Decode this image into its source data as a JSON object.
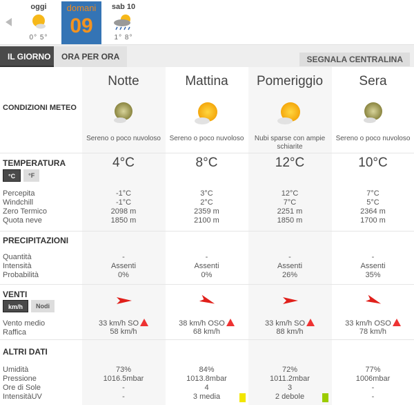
{
  "days": [
    {
      "name": "oggi",
      "temps": "0° 5°",
      "icon": "sun-cloud-icon"
    },
    {
      "name": "domani",
      "number": "09",
      "selected": true
    },
    {
      "name": "sab 10",
      "temps": "1° 8°",
      "icon": "rain-cloud-icon"
    }
  ],
  "tabs": {
    "day": "IL GIORNO",
    "hourly": "ORA PER ORA",
    "report": "SEGNALA CENTRALINA"
  },
  "sections": {
    "conditions": "CONDIZIONI METEO",
    "temperature": "TEMPERATURA",
    "precip": "PRECIPITAZIONI",
    "wind": "VENTI",
    "other": "ALTRI DATI"
  },
  "units": {
    "c": "°C",
    "f": "°F",
    "kmh": "km/h",
    "knots": "Nodi"
  },
  "labels": {
    "temperature": [
      "Percepita",
      "Windchill",
      "Zero Termico",
      "Quota neve"
    ],
    "precip": [
      "Quantità",
      "Intensità",
      "Probabilità"
    ],
    "wind": [
      "Vento medio",
      "Raffica"
    ],
    "other": [
      "Umidità",
      "Pressione",
      "Ore di Sole",
      "IntensitàUV"
    ]
  },
  "colors": {
    "accent": "#3474b5",
    "selected_day_text": "#f39320",
    "wind_arrow": "#e0201b",
    "uv_media": "#f2e600",
    "uv_debole": "#9ccc00"
  },
  "periods": [
    {
      "name": "Notte",
      "icon": "moon-cloud-icon",
      "desc": "Sereno o poco nuvoloso",
      "temp": "4°C",
      "perceived": "-1°C",
      "windchill": "-1°C",
      "freezing": "2098 m",
      "snow": "1850 m",
      "qty": "-",
      "intensity": "Assenti",
      "prob": "0%",
      "wind_dir_deg": 225,
      "wind": "33 km/h  SO",
      "gust": "58 km/h",
      "humidity": "73%",
      "pressure": "1016.5mbar",
      "sun": "-",
      "uv": "-",
      "uv_color": ""
    },
    {
      "name": "Mattina",
      "icon": "sun-cloud-icon",
      "desc": "Sereno o poco nuvoloso",
      "temp": "8°C",
      "perceived": "3°C",
      "windchill": "2°C",
      "freezing": "2359 m",
      "snow": "2100 m",
      "qty": "-",
      "intensity": "Assenti",
      "prob": "0%",
      "wind_dir_deg": 247,
      "wind": "38 km/h  OSO",
      "gust": "68 km/h",
      "humidity": "84%",
      "pressure": "1013.8mbar",
      "sun": "4",
      "uv": "3 media",
      "uv_color": "#f2e600"
    },
    {
      "name": "Pomeriggio",
      "icon": "sun-cloud-icon",
      "desc": "Nubi sparse con ampie schiarite",
      "temp": "12°C",
      "perceived": "12°C",
      "windchill": "7°C",
      "freezing": "2251 m",
      "snow": "1850 m",
      "qty": "-",
      "intensity": "Assenti",
      "prob": "26%",
      "wind_dir_deg": 225,
      "wind": "33 km/h  SO",
      "gust": "88 km/h",
      "humidity": "72%",
      "pressure": "1011.2mbar",
      "sun": "3",
      "uv": "2 debole",
      "uv_color": "#9ccc00"
    },
    {
      "name": "Sera",
      "icon": "moon-cloud-icon",
      "desc": "Sereno o poco nuvoloso",
      "temp": "10°C",
      "perceived": "7°C",
      "windchill": "5°C",
      "freezing": "2364 m",
      "snow": "1700 m",
      "qty": "-",
      "intensity": "Assenti",
      "prob": "35%",
      "wind_dir_deg": 247,
      "wind": "33 km/h  OSO",
      "gust": "78 km/h",
      "humidity": "77%",
      "pressure": "1006mbar",
      "sun": "-",
      "uv": "-",
      "uv_color": ""
    }
  ]
}
